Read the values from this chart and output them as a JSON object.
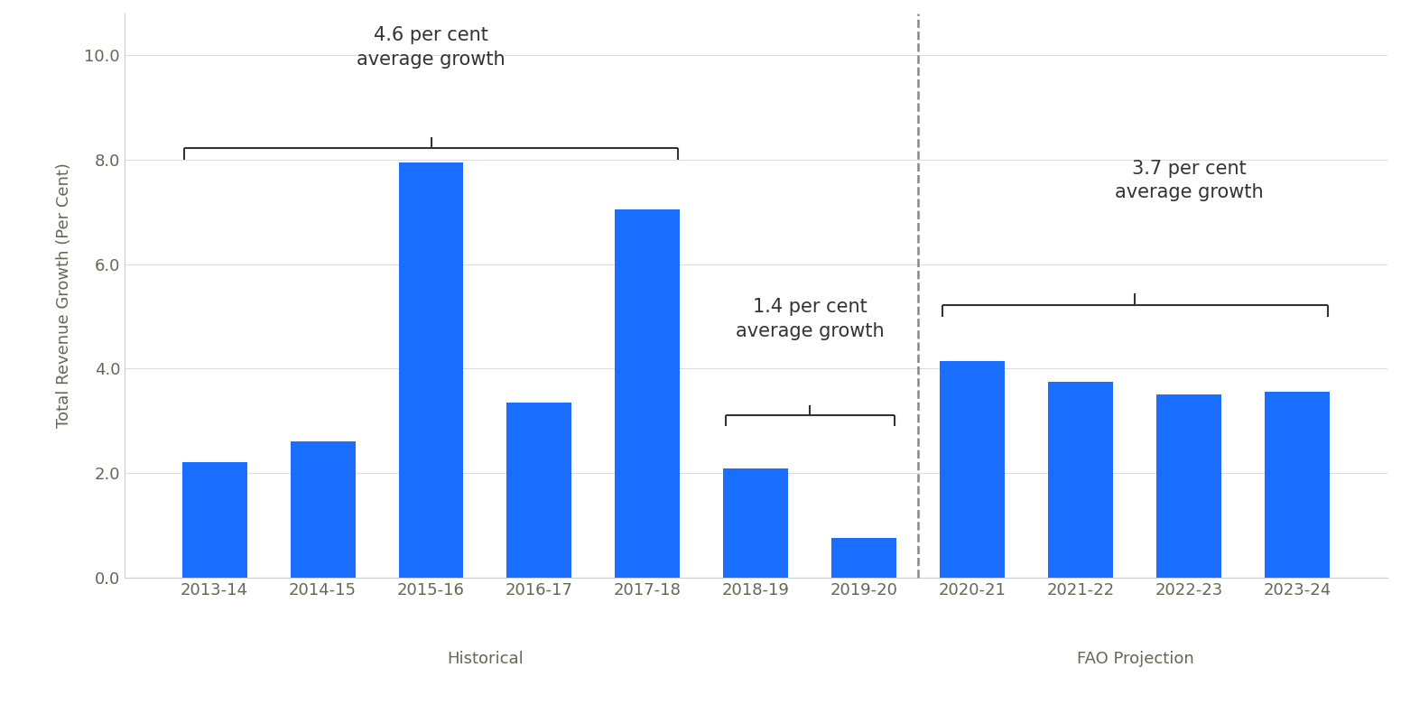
{
  "categories": [
    "2013-14",
    "2014-15",
    "2015-16",
    "2016-17",
    "2017-18",
    "2018-19",
    "2019-20",
    "2020-21",
    "2021-22",
    "2022-23",
    "2023-24"
  ],
  "values": [
    2.2,
    2.6,
    7.95,
    3.35,
    7.05,
    2.08,
    0.75,
    4.15,
    3.75,
    3.5,
    3.55
  ],
  "bar_color": "#1a6eff",
  "ylabel": "Total Revenue Growth (Per Cent)",
  "yticks": [
    0.0,
    2.0,
    4.0,
    6.0,
    8.0,
    10.0
  ],
  "ylim": [
    0,
    10.8
  ],
  "historical_label": "Historical",
  "projection_label": "FAO Projection",
  "annotation1_text": "4.6 per cent\naverage growth",
  "annotation2_text": "1.4 per cent\naverage growth",
  "annotation3_text": "3.7 per cent\naverage growth",
  "background_color": "#ffffff",
  "text_color": "#666655",
  "annotation_color": "#333333",
  "fontsize_ticks": 13,
  "fontsize_ylabel": 13,
  "fontsize_annotation": 15,
  "fontsize_group_label": 13
}
